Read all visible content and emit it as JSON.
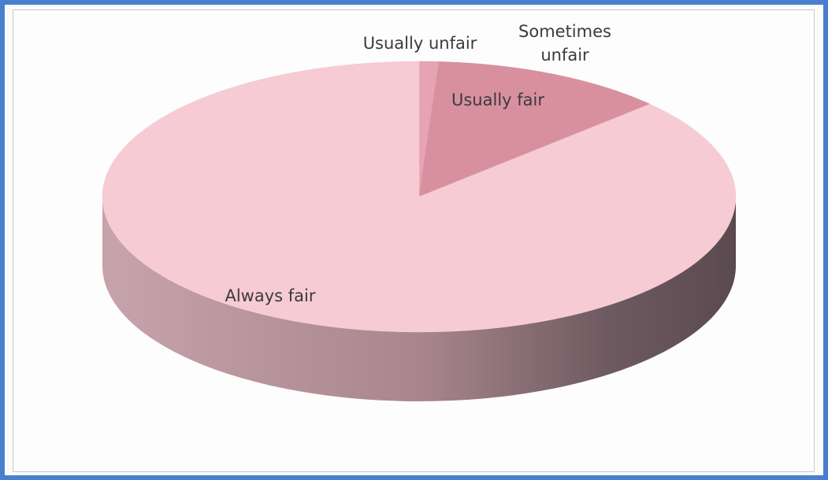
{
  "chart_data": {
    "type": "pie3d",
    "categories": [
      "Usually unfair",
      "Sometimes unfair",
      "Usually fair",
      "Always fair"
    ],
    "values": [
      0,
      1,
      12,
      87
    ],
    "colors": [
      "#c0506a",
      "#e6a3b2",
      "#d9909e",
      "#f6cbd4"
    ]
  }
}
